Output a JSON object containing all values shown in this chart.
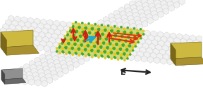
{
  "bg": "#ffffff",
  "gr_fc": "#f0f0f0",
  "gr_ec": "#c0c0c0",
  "tmd_fc": "#c8d878",
  "tmd_ec": "#90b050",
  "dot_y": "#e8c820",
  "dot_g": "#48a828",
  "gold_t": "#cdb840",
  "gold_s": "#a89030",
  "gold_f": "#7a6818",
  "gray_t": "#909090",
  "gray_s": "#686868",
  "gray_f": "#484848",
  "spin_c": "#cc2010",
  "curr_c": "#20a8cc",
  "flow_c": "#dd3010",
  "E_c": "#222222",
  "E_lbl": "E"
}
